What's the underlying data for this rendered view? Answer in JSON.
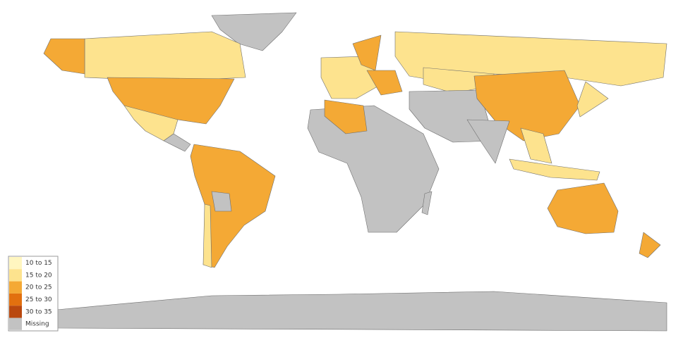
{
  "legend": {
    "items": [
      {
        "label": "10 to 15",
        "color": "#fff6c0"
      },
      {
        "label": "15 to 20",
        "color": "#fde38e"
      },
      {
        "label": "20 to 25",
        "color": "#f4a935"
      },
      {
        "label": "25 to 30",
        "color": "#e2700f"
      },
      {
        "label": "30 to 35",
        "color": "#b9480e"
      },
      {
        "label": "Missing",
        "color": "#c2c2c2"
      }
    ]
  }
}
